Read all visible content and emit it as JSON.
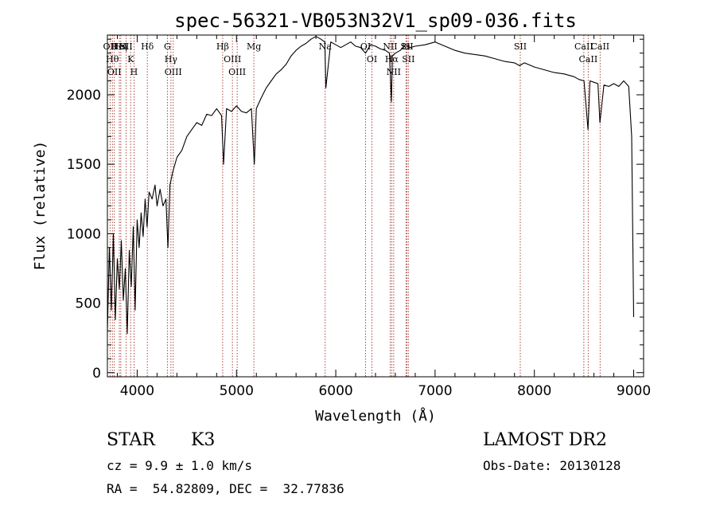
{
  "chart_data": {
    "type": "line",
    "title": "spec-56321-VB053N32V1_sp09-036.fits",
    "xlabel": "Wavelength (Å)",
    "ylabel": "Flux (relative)",
    "xlim": [
      3700,
      9100
    ],
    "ylim": [
      -30,
      2430
    ],
    "xticks": [
      4000,
      5000,
      6000,
      7000,
      8000,
      9000
    ],
    "yticks": [
      0,
      500,
      1000,
      1500,
      2000
    ],
    "grid": false,
    "series": [
      {
        "x": [
          3700,
          3720,
          3740,
          3760,
          3780,
          3800,
          3820,
          3840,
          3860,
          3880,
          3900,
          3920,
          3940,
          3960,
          3980,
          4000,
          4020,
          4040,
          4060,
          4080,
          4100,
          4120,
          4150,
          4180,
          4200,
          4230,
          4260,
          4290,
          4310,
          4330,
          4360,
          4400,
          4450,
          4500,
          4550,
          4600,
          4650,
          4700,
          4750,
          4800,
          4850,
          4870,
          4900,
          4950,
          5000,
          5050,
          5100,
          5150,
          5180,
          5200,
          5250,
          5300,
          5350,
          5400,
          5450,
          5500,
          5550,
          5600,
          5650,
          5700,
          5750,
          5800,
          5850,
          5890,
          5900,
          5950,
          6000,
          6050,
          6100,
          6150,
          6200,
          6250,
          6300,
          6350,
          6400,
          6450,
          6500,
          6540,
          6560,
          6570,
          6600,
          6650,
          6700,
          6750,
          6800,
          6900,
          7000,
          7100,
          7200,
          7300,
          7400,
          7500,
          7600,
          7700,
          7800,
          7850,
          7900,
          8000,
          8100,
          8200,
          8300,
          8400,
          8450,
          8500,
          8540,
          8560,
          8600,
          8640,
          8660,
          8700,
          8750,
          8800,
          8850,
          8900,
          8950,
          8980,
          9000
        ],
        "y": [
          300,
          900,
          450,
          1000,
          380,
          820,
          600,
          950,
          520,
          750,
          280,
          880,
          620,
          1050,
          450,
          1100,
          900,
          1150,
          980,
          1250,
          1050,
          1300,
          1250,
          1350,
          1200,
          1320,
          1200,
          1250,
          900,
          1350,
          1450,
          1550,
          1600,
          1700,
          1750,
          1800,
          1780,
          1860,
          1850,
          1900,
          1850,
          1500,
          1900,
          1880,
          1920,
          1880,
          1870,
          1900,
          1500,
          1900,
          1980,
          2050,
          2100,
          2150,
          2180,
          2220,
          2280,
          2320,
          2350,
          2370,
          2400,
          2420,
          2400,
          2380,
          2050,
          2380,
          2360,
          2340,
          2360,
          2380,
          2350,
          2340,
          2300,
          2360,
          2350,
          2330,
          2320,
          2300,
          1950,
          2280,
          2300,
          2320,
          2360,
          2340,
          2350,
          2360,
          2380,
          2350,
          2320,
          2300,
          2290,
          2280,
          2260,
          2240,
          2230,
          2210,
          2230,
          2200,
          2180,
          2160,
          2150,
          2130,
          2110,
          2100,
          1750,
          2100,
          2090,
          2080,
          1800,
          2070,
          2060,
          2080,
          2060,
          2100,
          2060,
          1700,
          400
        ]
      }
    ],
    "spectral_lines": [
      {
        "wavelength": 3727,
        "label": "OII"
      },
      {
        "wavelength": 3750,
        "label": "Hθ"
      },
      {
        "wavelength": 3770,
        "label": "OII"
      },
      {
        "wavelength": 3820,
        "label": "HeI"
      },
      {
        "wavelength": 3835,
        "label": "Hη"
      },
      {
        "wavelength": 3889,
        "label": "SII"
      },
      {
        "wavelength": 3934,
        "label": "K"
      },
      {
        "wavelength": 3968,
        "label": "H"
      },
      {
        "wavelength": 4102,
        "label": "Hδ"
      },
      {
        "wavelength": 4304,
        "label": "G"
      },
      {
        "wavelength": 4340,
        "label": "Hγ"
      },
      {
        "wavelength": 4363,
        "label": "OIII"
      },
      {
        "wavelength": 4861,
        "label": "Hβ"
      },
      {
        "wavelength": 4959,
        "label": "OIII"
      },
      {
        "wavelength": 5007,
        "label": "OIII"
      },
      {
        "wavelength": 5175,
        "label": "Mg"
      },
      {
        "wavelength": 5893,
        "label": "Na"
      },
      {
        "wavelength": 6300,
        "label": "OI"
      },
      {
        "wavelength": 6364,
        "label": "OI"
      },
      {
        "wavelength": 6548,
        "label": "NII"
      },
      {
        "wavelength": 6563,
        "label": "Hα"
      },
      {
        "wavelength": 6583,
        "label": "NII"
      },
      {
        "wavelength": 6707,
        "label": "Li"
      },
      {
        "wavelength": 6716,
        "label": "SII"
      },
      {
        "wavelength": 6731,
        "label": "SII"
      },
      {
        "wavelength": 7858,
        "label": "SII"
      },
      {
        "wavelength": 8498,
        "label": "CaII"
      },
      {
        "wavelength": 8542,
        "label": "CaII"
      },
      {
        "wavelength": 8662,
        "label": "CaII"
      }
    ]
  },
  "info": {
    "object_class": "STAR",
    "subclass": "K3",
    "cz_line": "cz = 9.9 ± 1.0 km/s",
    "radec_line": "RA =  54.82809, DEC =  32.77836",
    "survey": "LAMOST DR2",
    "obs_date_line": "Obs-Date: 20130128"
  },
  "colors": {
    "spectrum": "#000000",
    "line_markers": "#a0332a",
    "axes": "#000000"
  }
}
